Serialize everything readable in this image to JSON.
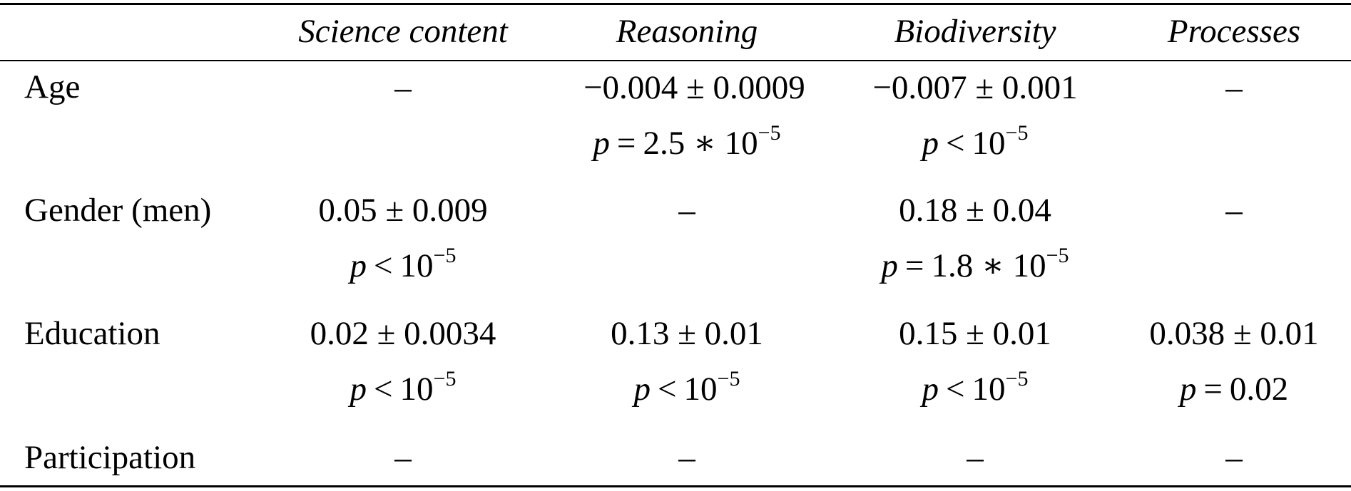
{
  "table": {
    "headers": [
      "",
      "Science content",
      "Reasoning",
      "Biodiversity",
      "Processes"
    ],
    "rows": [
      {
        "label": "Age",
        "cells": [
          {
            "value": "–"
          },
          {
            "value": "−0.004 ± 0.0009",
            "p_symbol": "p",
            "p_rel": "=",
            "p_text": "2.5 ∗ 10",
            "p_exp": "−5"
          },
          {
            "value": "−0.007 ± 0.001",
            "p_symbol": "p",
            "p_rel": "<",
            "p_text": "10",
            "p_exp": "−5"
          },
          {
            "value": "–"
          }
        ]
      },
      {
        "label": "Gender (men)",
        "cells": [
          {
            "value": "0.05 ± 0.009",
            "p_symbol": "p",
            "p_rel": "<",
            "p_text": "10",
            "p_exp": "−5"
          },
          {
            "value": "–"
          },
          {
            "value": "0.18 ± 0.04",
            "p_symbol": "p",
            "p_rel": "=",
            "p_text": "1.8 ∗ 10",
            "p_exp": "−5"
          },
          {
            "value": "–"
          }
        ]
      },
      {
        "label": "Education",
        "cells": [
          {
            "value": "0.02 ± 0.0034",
            "p_symbol": "p",
            "p_rel": "<",
            "p_text": "10",
            "p_exp": "−5"
          },
          {
            "value": "0.13 ± 0.01",
            "p_symbol": "p",
            "p_rel": "<",
            "p_text": "10",
            "p_exp": "−5"
          },
          {
            "value": "0.15 ± 0.01",
            "p_symbol": "p",
            "p_rel": "<",
            "p_text": "10",
            "p_exp": "−5"
          },
          {
            "value": "0.038 ± 0.01",
            "p_symbol": "p",
            "p_rel": "=",
            "p_text": "0.02",
            "p_exp": ""
          }
        ]
      },
      {
        "label": "Participation",
        "cells": [
          {
            "value": "–"
          },
          {
            "value": "–"
          },
          {
            "value": "–"
          },
          {
            "value": "–"
          }
        ]
      }
    ]
  }
}
